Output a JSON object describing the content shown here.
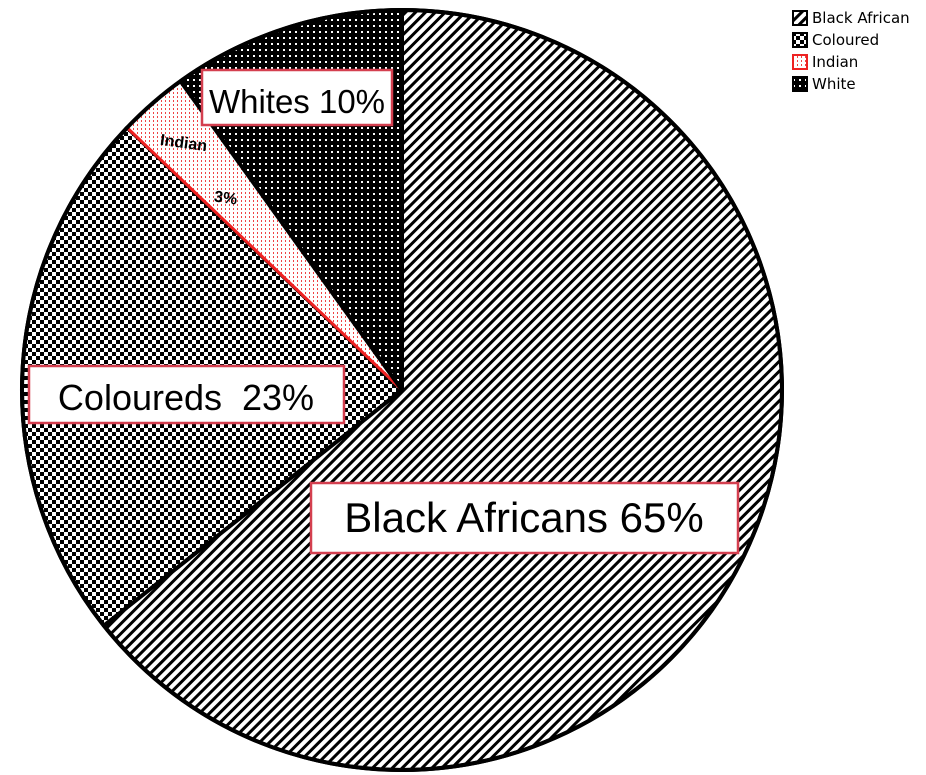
{
  "chart_data": {
    "type": "pie",
    "start_angle_deg": 0,
    "direction": "clockwise",
    "slices": [
      {
        "name": "Black African",
        "value": 65,
        "label": "Black Africans 65%",
        "pattern": "diagonal-stripes",
        "outline": "#000000"
      },
      {
        "name": "Coloured",
        "value": 23,
        "label": "Coloureds  23%",
        "pattern": "checker",
        "outline": "#000000"
      },
      {
        "name": "Indian",
        "value": 3,
        "label_line1": "Indian",
        "label_line2": "3%",
        "pattern": "vertical-dots",
        "outline": "#ee2222"
      },
      {
        "name": "White",
        "value": 10,
        "label": "Whites 10%",
        "pattern": "dense-dots",
        "outline": "#000000"
      }
    ],
    "legend": {
      "position": "top-right",
      "entries": [
        "Black African",
        "Coloured",
        "Indian",
        "White"
      ]
    },
    "colors": {
      "label_box_border": "#d43f4f",
      "indian_outline": "#ee2222"
    }
  }
}
